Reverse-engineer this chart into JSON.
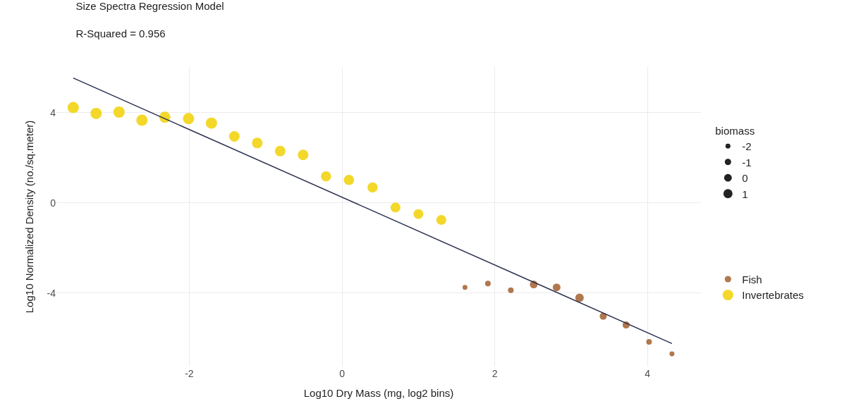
{
  "chart_data": {
    "type": "bubble",
    "title": "Size Spectra Regression Model",
    "subtitle": "R-Squared = 0.956",
    "xlabel": "Log10 Dry Mass (mg, log2 bins)",
    "ylabel": "Log10 Normalized Density (no./sq.meter)",
    "legend_title": "biomass",
    "size_legend": [
      {
        "value": 0.19,
        "label": "-2"
      },
      {
        "value": 0.32,
        "label": "-1"
      },
      {
        "value": 0.47,
        "label": "0"
      },
      {
        "value": 0.66,
        "label": "1"
      }
    ],
    "series": [
      {
        "name": "Fish",
        "color": "#a8683a",
        "x": [
          1.61,
          1.91,
          2.21,
          2.51,
          2.81,
          3.11,
          3.42,
          3.72,
          4.02,
          4.32
        ],
        "values": [
          -3.74,
          -3.57,
          -3.87,
          -3.61,
          -3.74,
          -4.2,
          -5.02,
          -5.41,
          -6.16,
          -6.69
        ],
        "sizes": [
          0.19,
          0.25,
          0.25,
          0.47,
          0.47,
          0.56,
          0.39,
          0.39,
          0.25,
          0.19
        ]
      },
      {
        "name": "Invertebrates",
        "color": "#f2d413",
        "x": [
          -3.52,
          -3.22,
          -2.92,
          -2.62,
          -2.32,
          -2.01,
          -1.71,
          -1.41,
          -1.11,
          -0.81,
          -0.51,
          -0.21,
          0.09,
          0.4,
          0.7,
          1.0,
          1.3
        ],
        "values": [
          4.23,
          3.97,
          4.03,
          3.67,
          3.8,
          3.74,
          3.54,
          2.95,
          2.66,
          2.3,
          2.13,
          1.18,
          1.02,
          0.69,
          -0.2,
          -0.49,
          -0.75
        ],
        "sizes": [
          1,
          1,
          1,
          1,
          1,
          1,
          1,
          0.88,
          0.88,
          0.88,
          0.88,
          0.82,
          0.82,
          0.82,
          0.77,
          0.77,
          0.77
        ]
      },
      {
        "type": "line",
        "color": "#2b3050",
        "x": [
          -3.52,
          4.32
        ],
        "values": [
          5.54,
          -6.23
        ]
      }
    ],
    "xlim": [
      -3.74,
      4.7
    ],
    "ylim": [
      -7.25,
      6.03
    ],
    "xticks": [
      -2,
      0,
      2,
      4
    ],
    "yticks": [
      -4,
      0,
      4
    ],
    "grid": true,
    "legend": "right"
  }
}
